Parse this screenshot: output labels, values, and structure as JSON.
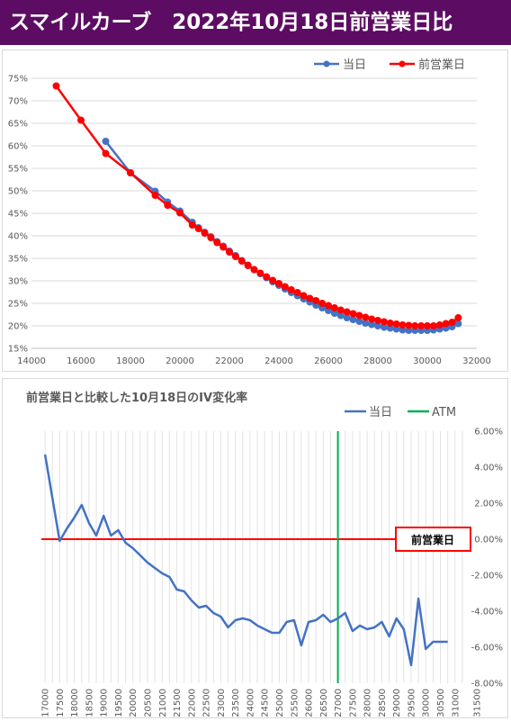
{
  "banner": {
    "title": "スマイルカーブ　2022年10月18日前営業日比",
    "background": "#5d0c63",
    "color": "#ffffff"
  },
  "chart_data": [
    {
      "type": "line",
      "title": "",
      "xlabel": "",
      "ylabel": "",
      "xlim": [
        14000,
        32000
      ],
      "ylim": [
        0.15,
        0.75
      ],
      "x_ticks": [
        "14000",
        "16000",
        "18000",
        "20000",
        "22000",
        "24000",
        "26000",
        "28000",
        "30000",
        "32000"
      ],
      "y_ticks": [
        "15%",
        "20%",
        "25%",
        "30%",
        "35%",
        "40%",
        "45%",
        "50%",
        "55%",
        "60%",
        "65%",
        "70%",
        "75%"
      ],
      "grid": "horizontal",
      "legend_position": "top-right",
      "series": [
        {
          "name": "当日",
          "color": "#4472c4",
          "marker": "circle",
          "x": [
            17000,
            18000,
            19000,
            19500,
            20000,
            20500,
            20750,
            21000,
            21250,
            21500,
            21750,
            22000,
            22250,
            22500,
            22750,
            23000,
            23250,
            23500,
            23750,
            24000,
            24250,
            24500,
            24750,
            25000,
            25250,
            25500,
            25750,
            26000,
            26250,
            26500,
            26750,
            27000,
            27250,
            27500,
            27750,
            28000,
            28250,
            28500,
            28750,
            29000,
            29250,
            29500,
            29750,
            30000,
            30250,
            30500,
            30750,
            31000,
            31250
          ],
          "y": [
            0.61,
            0.54,
            0.499,
            0.475,
            0.455,
            0.43,
            0.418,
            0.408,
            0.398,
            0.387,
            0.377,
            0.366,
            0.356,
            0.345,
            0.335,
            0.325,
            0.316,
            0.307,
            0.298,
            0.29,
            0.282,
            0.274,
            0.267,
            0.26,
            0.253,
            0.246,
            0.24,
            0.234,
            0.228,
            0.223,
            0.218,
            0.214,
            0.21,
            0.206,
            0.203,
            0.2,
            0.197,
            0.195,
            0.193,
            0.191,
            0.19,
            0.19,
            0.19,
            0.19,
            0.191,
            0.193,
            0.195,
            0.198,
            0.205
          ]
        },
        {
          "name": "前営業日",
          "color": "#ff0000",
          "marker": "circle",
          "x": [
            15000,
            16000,
            17000,
            18000,
            19000,
            19500,
            20000,
            20500,
            20750,
            21000,
            21250,
            21500,
            21750,
            22000,
            22250,
            22500,
            22750,
            23000,
            23250,
            23500,
            23750,
            24000,
            24250,
            24500,
            24750,
            25000,
            25250,
            25500,
            25750,
            26000,
            26250,
            26500,
            26750,
            27000,
            27250,
            27500,
            27750,
            28000,
            28250,
            28500,
            28750,
            29000,
            29250,
            29500,
            29750,
            30000,
            30250,
            30500,
            30750,
            31000,
            31250
          ],
          "y": [
            0.733,
            0.657,
            0.583,
            0.54,
            0.49,
            0.468,
            0.451,
            0.424,
            0.416,
            0.406,
            0.396,
            0.385,
            0.375,
            0.364,
            0.354,
            0.344,
            0.334,
            0.325,
            0.317,
            0.309,
            0.301,
            0.294,
            0.287,
            0.28,
            0.274,
            0.267,
            0.261,
            0.256,
            0.25,
            0.245,
            0.24,
            0.235,
            0.231,
            0.227,
            0.223,
            0.219,
            0.215,
            0.212,
            0.209,
            0.206,
            0.204,
            0.202,
            0.201,
            0.2,
            0.2,
            0.2,
            0.2,
            0.202,
            0.205,
            0.208,
            0.218
          ]
        }
      ]
    },
    {
      "type": "line",
      "title": "前営業日と比較した10月18日のIV変化率",
      "xlabel": "",
      "ylabel": "",
      "categories": [
        "17000",
        "17250",
        "17500",
        "17750",
        "18000",
        "18250",
        "18500",
        "18750",
        "19000",
        "19250",
        "19500",
        "19750",
        "20000",
        "20250",
        "20500",
        "20750",
        "21000",
        "21250",
        "21500",
        "21750",
        "22000",
        "22250",
        "22500",
        "22750",
        "23000",
        "23250",
        "23500",
        "23750",
        "24000",
        "24250",
        "24500",
        "24750",
        "25000",
        "25250",
        "25500",
        "25750",
        "26000",
        "26250",
        "26500",
        "26750",
        "27000",
        "27250",
        "27500",
        "27750",
        "28000",
        "28250",
        "28500",
        "28750",
        "29000",
        "29250",
        "29500",
        "29750",
        "30000",
        "30250",
        "30500",
        "30750",
        "31000",
        "31250"
      ],
      "x_tick_labels": [
        "17000",
        "17500",
        "18000",
        "18500",
        "19000",
        "19500",
        "20000",
        "20500",
        "21000",
        "21500",
        "22000",
        "22500",
        "23000",
        "23500",
        "24000",
        "24500",
        "25000",
        "25500",
        "26000",
        "26500",
        "27000",
        "27500",
        "28000",
        "28500",
        "29000",
        "29500",
        "30000",
        "30500",
        "31000",
        "31500"
      ],
      "ylim": [
        -0.08,
        0.06
      ],
      "y_ticks": [
        "6.00%",
        "4.00%",
        "2.00%",
        "0.00%",
        "-2.00%",
        "-4.00%",
        "-6.00%",
        "-8.00%"
      ],
      "y_axis_side": "right",
      "grid": "vertical",
      "legend_position": "top-right",
      "series": [
        {
          "name": "当日",
          "color": "#4472c4",
          "values": [
            0.047,
            0.023,
            -0.001,
            0.006,
            0.012,
            0.019,
            0.009,
            0.002,
            0.013,
            0.002,
            0.005,
            -0.002,
            -0.005,
            -0.009,
            -0.013,
            -0.016,
            -0.019,
            -0.021,
            -0.028,
            -0.029,
            -0.034,
            -0.038,
            -0.037,
            -0.041,
            -0.043,
            -0.049,
            -0.045,
            -0.044,
            -0.045,
            -0.048,
            -0.05,
            -0.052,
            -0.052,
            -0.046,
            -0.045,
            -0.059,
            -0.046,
            -0.045,
            -0.042,
            -0.046,
            -0.044,
            -0.041,
            -0.051,
            -0.048,
            -0.05,
            -0.049,
            -0.046,
            -0.054,
            -0.044,
            -0.05,
            -0.07,
            -0.033,
            -0.061,
            -0.057,
            -0.057,
            -0.057,
            -0.057,
            -0.057
          ]
        }
      ],
      "reference_lines": [
        {
          "name": "前営業日",
          "orientation": "horizontal",
          "value": 0.0,
          "color": "#ff0000",
          "boxed_label": true
        },
        {
          "name": "ATM",
          "orientation": "vertical",
          "category": "27000",
          "color": "#00b050"
        }
      ]
    }
  ]
}
